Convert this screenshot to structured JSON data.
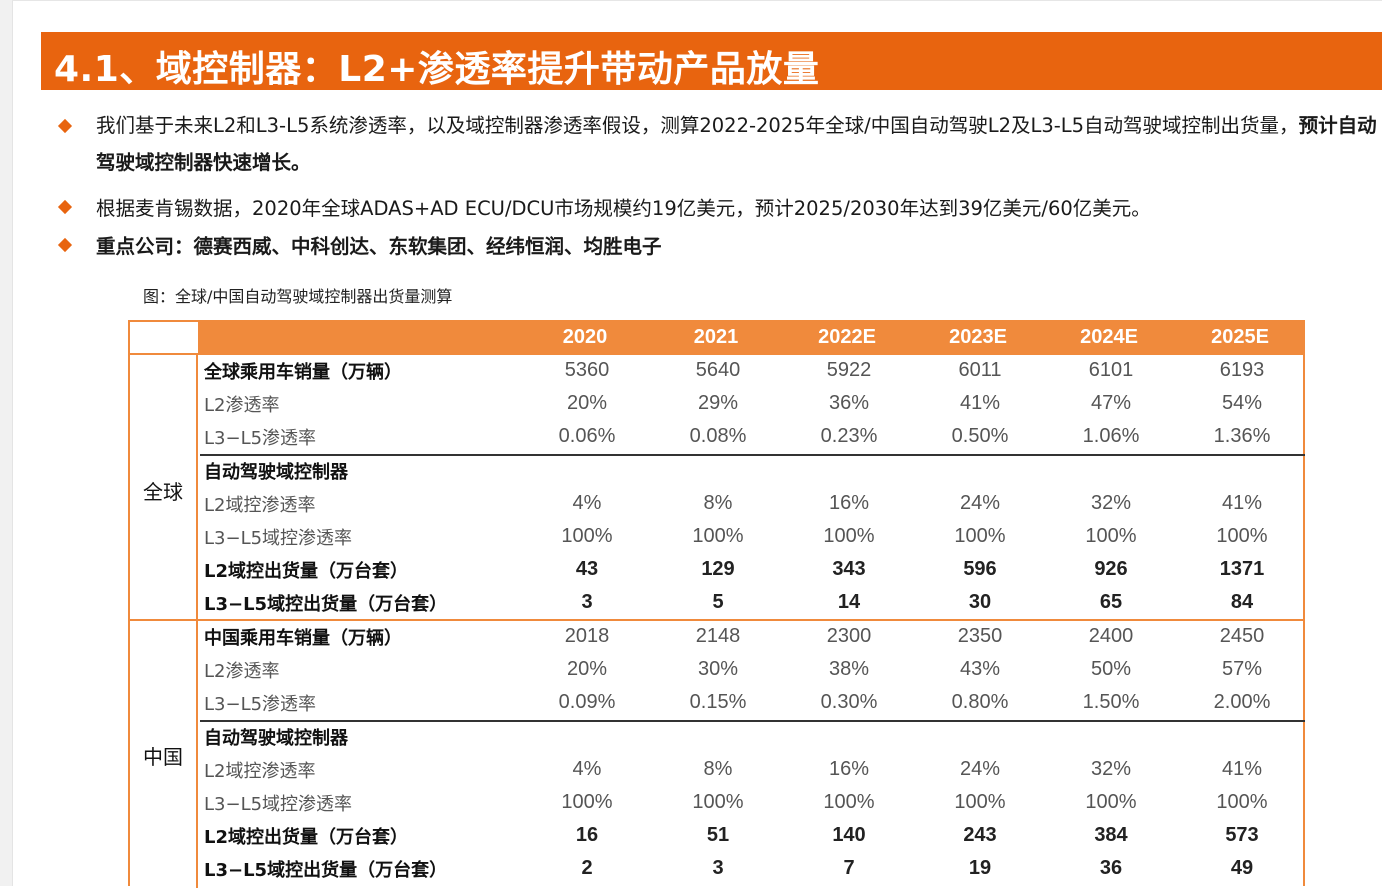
{
  "title": "4.1、域控制器：L2+渗透率提升带动产品放量",
  "bullets": [
    {
      "text": "我们基于未来L2和L3-L5系统渗透率，以及域控制器渗透率假设，测算2022-2025年全球/中国自动驾驶L2及L3-L5自动驾驶域控制出货量，",
      "bold": "预计自动驾驶域控制器快速增长。"
    },
    {
      "text": "根据麦肯锡数据，2020年全球ADAS+AD ECU/DCU市场规模约19亿美元，预计2025/2030年达到39亿美元/60亿美元。",
      "bold": ""
    },
    {
      "text": "",
      "bold": "重点公司：德赛西威、中科创达、东软集团、经纬恒润、均胜电子"
    }
  ],
  "figure_caption": "图：全球/中国自动驾驶域控制器出货量测算",
  "table": {
    "years": [
      "2020",
      "2021",
      "2022E",
      "2023E",
      "2024E",
      "2025E"
    ],
    "global": {
      "region": "全球",
      "rows": [
        {
          "label": "全球乘用车销量（万辆）",
          "values": [
            "5360",
            "5640",
            "5922",
            "6011",
            "6101",
            "6193"
          ]
        },
        {
          "label": "L2渗透率",
          "values": [
            "20%",
            "29%",
            "36%",
            "41%",
            "47%",
            "54%"
          ]
        },
        {
          "label": "L3−L5渗透率",
          "values": [
            "0.06%",
            "0.08%",
            "0.23%",
            "0.50%",
            "1.06%",
            "1.36%"
          ]
        },
        {
          "label": "自动驾驶域控制器",
          "values": [
            "",
            "",
            "",
            "",
            "",
            ""
          ]
        },
        {
          "label": "L2域控渗透率",
          "values": [
            "4%",
            "8%",
            "16%",
            "24%",
            "32%",
            "41%"
          ]
        },
        {
          "label": "L3−L5域控渗透率",
          "values": [
            "100%",
            "100%",
            "100%",
            "100%",
            "100%",
            "100%"
          ]
        },
        {
          "label": "L2域控出货量（万台套）",
          "values": [
            "43",
            "129",
            "343",
            "596",
            "926",
            "1371"
          ]
        },
        {
          "label": "L3−L5域控出货量（万台套）",
          "values": [
            "3",
            "5",
            "14",
            "30",
            "65",
            "84"
          ]
        }
      ]
    },
    "china": {
      "region": "中国",
      "rows": [
        {
          "label": "中国乘用车销量（万辆）",
          "values": [
            "2018",
            "2148",
            "2300",
            "2350",
            "2400",
            "2450"
          ]
        },
        {
          "label": "L2渗透率",
          "values": [
            "20%",
            "30%",
            "38%",
            "43%",
            "50%",
            "57%"
          ]
        },
        {
          "label": "L3−L5渗透率",
          "values": [
            "0.09%",
            "0.15%",
            "0.30%",
            "0.80%",
            "1.50%",
            "2.00%"
          ]
        },
        {
          "label": "自动驾驶域控制器",
          "values": [
            "",
            "",
            "",
            "",
            "",
            ""
          ]
        },
        {
          "label": "L2域控渗透率",
          "values": [
            "4%",
            "8%",
            "16%",
            "24%",
            "32%",
            "41%"
          ]
        },
        {
          "label": "L3−L5域控渗透率",
          "values": [
            "100%",
            "100%",
            "100%",
            "100%",
            "100%",
            "100%"
          ]
        },
        {
          "label": "L2域控出货量（万台套）",
          "values": [
            "16",
            "51",
            "140",
            "243",
            "384",
            "573"
          ]
        },
        {
          "label": "L3−L5域控出货量（万台套）",
          "values": [
            "2",
            "3",
            "7",
            "19",
            "36",
            "49"
          ]
        }
      ]
    }
  },
  "colors": {
    "accent": "#e8640f",
    "table_header": "#f08a3c"
  }
}
